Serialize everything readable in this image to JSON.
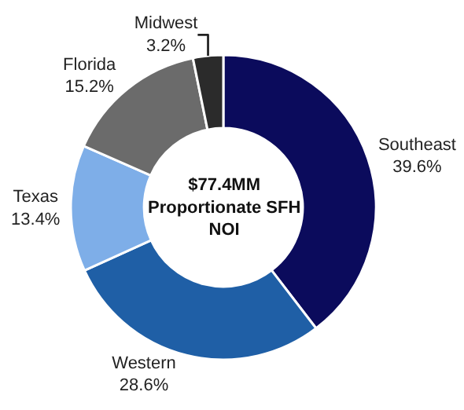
{
  "chart_data": {
    "type": "donut",
    "categories": [
      "Southeast",
      "Western",
      "Texas",
      "Florida",
      "Midwest"
    ],
    "values": [
      39.6,
      28.6,
      13.4,
      15.2,
      3.2
    ],
    "value_labels": [
      "39.6%",
      "28.6%",
      "13.4%",
      "15.2%",
      "3.2%"
    ],
    "colors": [
      "#0b0b5c",
      "#1f5fa6",
      "#7eaee8",
      "#6b6b6b",
      "#2b2b2b"
    ],
    "annotations": [
      "$77.4MM\nProportionate SFH\nNOI"
    ],
    "legend": false
  }
}
